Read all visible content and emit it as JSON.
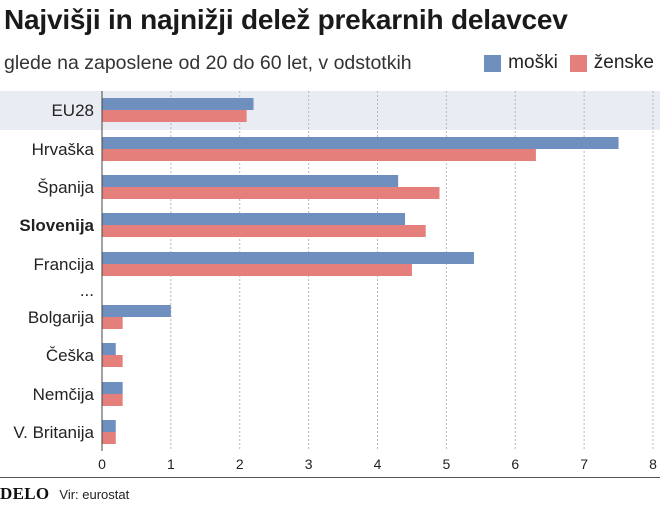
{
  "title": "Najvišji in najnižji delež prekarnih delavcev",
  "subtitle": "glede na zaposlene od 20 do 60 let, v odstotkih",
  "source": "Vir: eurostat",
  "logo": "DELO",
  "colors": {
    "moski": "#6f8fbf",
    "zenske": "#e47f7c",
    "highlight": "#e9edf3",
    "grid": "#b9b9b9"
  },
  "chart_data": {
    "type": "bar",
    "orientation": "horizontal",
    "categories": [
      "EU28",
      "Hrvaška",
      "Španija",
      "Slovenija",
      "Francija",
      "...",
      "Bolgarija",
      "Češka",
      "Nemčija",
      "V. Britanija"
    ],
    "bold_category": "Slovenija",
    "highlighted_category": "EU28",
    "series": [
      {
        "name": "moški",
        "values": [
          2.2,
          7.5,
          4.3,
          4.4,
          5.4,
          null,
          1.0,
          0.2,
          0.3,
          0.2
        ]
      },
      {
        "name": "ženske",
        "values": [
          2.1,
          6.3,
          4.9,
          4.7,
          4.5,
          null,
          0.3,
          0.3,
          0.3,
          0.2
        ]
      }
    ],
    "xticks": [
      0,
      1,
      2,
      3,
      4,
      5,
      6,
      7,
      8
    ],
    "xlim": [
      0,
      8
    ],
    "grid": true,
    "legend_position": "top-right"
  }
}
